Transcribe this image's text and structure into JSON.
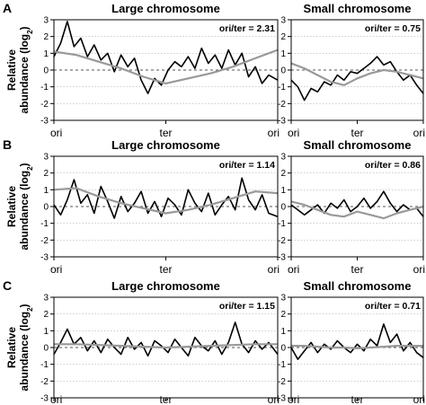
{
  "figure": {
    "ylabel_line1": "Relative",
    "ylabel_line2": "abundance (log",
    "ylabel_sub": "2",
    "ylabel_close": ")"
  },
  "chart_data": [
    {
      "type": "line",
      "panel": "A",
      "title": "Large chromosome",
      "annotation": "ori/ter = 2.31",
      "x_tick_labels": [
        "ori",
        "ter",
        "ori"
      ],
      "ylim": [
        -3,
        3
      ],
      "y_ticks": [
        -3,
        -2,
        -1,
        0,
        1,
        2,
        3
      ],
      "grid": true,
      "series": [
        {
          "color": "#000000",
          "width": 1.6,
          "x": [
            0,
            0.03,
            0.06,
            0.09,
            0.12,
            0.15,
            0.18,
            0.21,
            0.24,
            0.27,
            0.3,
            0.33,
            0.36,
            0.39,
            0.42,
            0.45,
            0.48,
            0.51,
            0.54,
            0.57,
            0.6,
            0.63,
            0.66,
            0.69,
            0.72,
            0.75,
            0.78,
            0.81,
            0.84,
            0.87,
            0.9,
            0.93,
            0.96,
            1.0
          ],
          "y": [
            0.8,
            1.6,
            2.9,
            1.4,
            1.9,
            0.8,
            1.5,
            0.6,
            1.0,
            -0.1,
            0.9,
            0.2,
            0.7,
            -0.6,
            -1.4,
            -0.5,
            -0.9,
            0.0,
            0.5,
            0.2,
            0.8,
            0.1,
            1.3,
            0.4,
            0.9,
            0.1,
            1.2,
            0.3,
            1.0,
            -0.4,
            0.2,
            -0.8,
            -0.3,
            -0.6
          ]
        },
        {
          "color": "#999999",
          "width": 2.2,
          "x": [
            0,
            0.1,
            0.2,
            0.3,
            0.4,
            0.5,
            0.6,
            0.7,
            0.8,
            0.9,
            1.0
          ],
          "y": [
            1.1,
            0.9,
            0.5,
            0.1,
            -0.4,
            -0.8,
            -0.5,
            -0.2,
            0.2,
            0.7,
            1.2
          ]
        }
      ]
    },
    {
      "type": "line",
      "panel": "A",
      "title": "Small chromosome",
      "annotation": "ori/ter = 0.75",
      "x_tick_labels": [
        "ori",
        "ter",
        "ori"
      ],
      "ylim": [
        -3,
        3
      ],
      "y_ticks": [
        -3,
        -2,
        -1,
        0,
        1,
        2,
        3
      ],
      "grid": true,
      "series": [
        {
          "color": "#000000",
          "width": 1.6,
          "x": [
            0,
            0.05,
            0.1,
            0.15,
            0.2,
            0.25,
            0.3,
            0.35,
            0.4,
            0.45,
            0.5,
            0.55,
            0.6,
            0.65,
            0.7,
            0.75,
            0.8,
            0.85,
            0.9,
            0.95,
            1.0
          ],
          "y": [
            -0.6,
            -1.0,
            -1.8,
            -1.1,
            -1.3,
            -0.7,
            -0.9,
            -0.3,
            -0.6,
            -0.1,
            -0.2,
            0.1,
            0.4,
            0.8,
            0.3,
            0.5,
            -0.1,
            -0.6,
            -0.3,
            -0.9,
            -1.4
          ]
        },
        {
          "color": "#999999",
          "width": 2.2,
          "x": [
            0,
            0.1,
            0.2,
            0.3,
            0.4,
            0.5,
            0.6,
            0.7,
            0.8,
            0.9,
            1.0
          ],
          "y": [
            0.4,
            0.1,
            -0.3,
            -0.7,
            -0.9,
            -0.5,
            -0.2,
            0.0,
            -0.1,
            -0.3,
            -0.5
          ]
        }
      ]
    },
    {
      "type": "line",
      "panel": "B",
      "title": "Large chromosome",
      "annotation": "ori/ter = 1.14",
      "x_tick_labels": [
        "ori",
        "ter",
        "ori"
      ],
      "ylim": [
        -3,
        3
      ],
      "y_ticks": [
        -3,
        -2,
        -1,
        0,
        1,
        2,
        3
      ],
      "grid": true,
      "series": [
        {
          "color": "#000000",
          "width": 1.6,
          "x": [
            0,
            0.03,
            0.06,
            0.09,
            0.12,
            0.15,
            0.18,
            0.21,
            0.24,
            0.27,
            0.3,
            0.33,
            0.36,
            0.39,
            0.42,
            0.45,
            0.48,
            0.51,
            0.54,
            0.57,
            0.6,
            0.63,
            0.66,
            0.69,
            0.72,
            0.75,
            0.78,
            0.81,
            0.84,
            0.87,
            0.9,
            0.93,
            0.96,
            1.0
          ],
          "y": [
            0.1,
            -0.5,
            0.4,
            1.6,
            0.2,
            0.7,
            -0.4,
            1.2,
            0.3,
            -0.7,
            0.6,
            -0.3,
            0.2,
            0.9,
            -0.4,
            0.3,
            -0.6,
            0.5,
            0.1,
            -0.5,
            1.0,
            0.2,
            -0.3,
            0.8,
            -0.5,
            0.1,
            0.6,
            -0.2,
            1.7,
            0.4,
            -0.2,
            0.7,
            -0.4,
            -0.6
          ]
        },
        {
          "color": "#999999",
          "width": 2.2,
          "x": [
            0,
            0.1,
            0.2,
            0.3,
            0.4,
            0.5,
            0.6,
            0.7,
            0.8,
            0.9,
            1.0
          ],
          "y": [
            1.0,
            1.1,
            0.6,
            0.2,
            -0.1,
            -0.4,
            -0.2,
            0.1,
            0.5,
            0.9,
            0.8
          ]
        }
      ]
    },
    {
      "type": "line",
      "panel": "B",
      "title": "Small chromosome",
      "annotation": "ori/ter = 0.86",
      "x_tick_labels": [
        "ori",
        "ter",
        "ori"
      ],
      "ylim": [
        -3,
        3
      ],
      "y_ticks": [
        -3,
        -2,
        -1,
        0,
        1,
        2,
        3
      ],
      "grid": true,
      "series": [
        {
          "color": "#000000",
          "width": 1.6,
          "x": [
            0,
            0.05,
            0.1,
            0.15,
            0.2,
            0.25,
            0.3,
            0.35,
            0.4,
            0.45,
            0.5,
            0.55,
            0.6,
            0.65,
            0.7,
            0.75,
            0.8,
            0.85,
            0.9,
            0.95,
            1.0
          ],
          "y": [
            0.1,
            -0.2,
            -0.5,
            -0.2,
            0.1,
            -0.4,
            0.2,
            -0.1,
            0.4,
            -0.3,
            0.0,
            0.5,
            -0.1,
            0.3,
            0.9,
            0.2,
            -0.3,
            0.1,
            -0.2,
            -0.1,
            -0.6
          ]
        },
        {
          "color": "#999999",
          "width": 2.2,
          "x": [
            0,
            0.1,
            0.2,
            0.3,
            0.4,
            0.5,
            0.6,
            0.7,
            0.8,
            0.9,
            1.0
          ],
          "y": [
            0.3,
            0.1,
            -0.2,
            -0.5,
            -0.6,
            -0.3,
            -0.5,
            -0.7,
            -0.4,
            -0.2,
            0.0
          ]
        }
      ]
    },
    {
      "type": "line",
      "panel": "C",
      "title": "Large chromosome",
      "annotation": "ori/ter = 1.15",
      "x_tick_labels": [
        "ori",
        "ter",
        "ori"
      ],
      "ylim": [
        -3,
        3
      ],
      "y_ticks": [
        -3,
        -2,
        -1,
        0,
        1,
        2,
        3
      ],
      "grid": true,
      "series": [
        {
          "color": "#000000",
          "width": 1.6,
          "x": [
            0,
            0.03,
            0.06,
            0.09,
            0.12,
            0.15,
            0.18,
            0.21,
            0.24,
            0.27,
            0.3,
            0.33,
            0.36,
            0.39,
            0.42,
            0.45,
            0.48,
            0.51,
            0.54,
            0.57,
            0.6,
            0.63,
            0.66,
            0.69,
            0.72,
            0.75,
            0.78,
            0.81,
            0.84,
            0.87,
            0.9,
            0.93,
            0.96,
            1.0
          ],
          "y": [
            -0.4,
            0.3,
            1.1,
            0.2,
            0.6,
            -0.2,
            0.4,
            -0.3,
            0.5,
            0.0,
            -0.4,
            0.6,
            -0.1,
            0.3,
            -0.5,
            0.4,
            0.1,
            -0.3,
            0.5,
            0.0,
            -0.5,
            0.6,
            0.1,
            -0.2,
            0.4,
            -0.4,
            0.3,
            1.5,
            0.2,
            -0.3,
            0.4,
            -0.1,
            0.3,
            -0.4
          ]
        },
        {
          "color": "#999999",
          "width": 2.2,
          "x": [
            0,
            0.1,
            0.2,
            0.3,
            0.4,
            0.5,
            0.6,
            0.7,
            0.8,
            0.9,
            1.0
          ],
          "y": [
            0.2,
            0.2,
            0.15,
            0.1,
            0.05,
            0.0,
            0.05,
            0.1,
            0.15,
            0.2,
            0.2
          ]
        }
      ]
    },
    {
      "type": "line",
      "panel": "C",
      "title": "Small chromosome",
      "annotation": "ori/ter = 0.71",
      "x_tick_labels": [
        "ori",
        "ter",
        "ori"
      ],
      "ylim": [
        -3,
        3
      ],
      "y_ticks": [
        -3,
        -2,
        -1,
        0,
        1,
        2,
        3
      ],
      "grid": true,
      "series": [
        {
          "color": "#000000",
          "width": 1.6,
          "x": [
            0,
            0.05,
            0.1,
            0.15,
            0.2,
            0.25,
            0.3,
            0.35,
            0.4,
            0.45,
            0.5,
            0.55,
            0.6,
            0.65,
            0.7,
            0.75,
            0.8,
            0.85,
            0.9,
            0.95,
            1.0
          ],
          "y": [
            0.0,
            -0.7,
            -0.2,
            0.3,
            -0.3,
            0.2,
            -0.1,
            0.4,
            0.0,
            -0.3,
            0.2,
            -0.2,
            0.5,
            0.1,
            1.4,
            0.3,
            0.8,
            -0.2,
            0.3,
            -0.3,
            -0.6
          ]
        },
        {
          "color": "#999999",
          "width": 2.2,
          "x": [
            0,
            0.1,
            0.2,
            0.3,
            0.4,
            0.5,
            0.6,
            0.7,
            0.8,
            0.9,
            1.0
          ],
          "y": [
            0.1,
            0.1,
            0.05,
            0.0,
            0.0,
            -0.05,
            0.0,
            0.05,
            0.1,
            0.1,
            0.1
          ]
        }
      ]
    }
  ]
}
